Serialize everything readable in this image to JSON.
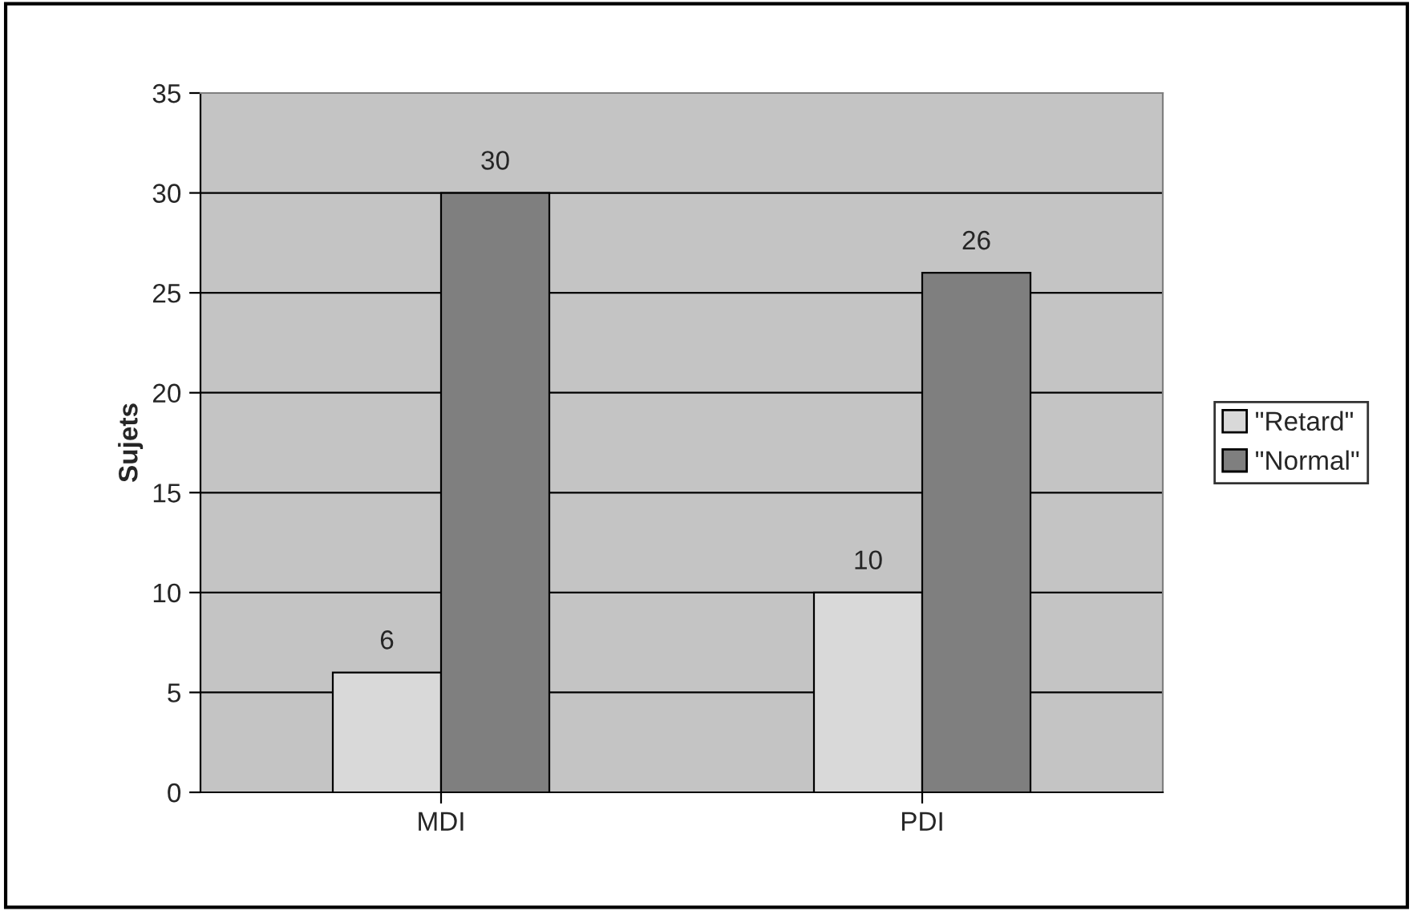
{
  "chart_data": {
    "type": "bar",
    "ylabel": "Sujets",
    "categories": [
      "MDI",
      "PDI"
    ],
    "series": [
      {
        "name": "\"Retard\"",
        "color": "#d9d9d9",
        "values": [
          6,
          10
        ]
      },
      {
        "name": "\"Normal\"",
        "color": "#7f7f7f",
        "values": [
          30,
          26
        ]
      }
    ],
    "ylim": [
      0,
      35
    ],
    "yticks": [
      0,
      5,
      10,
      15,
      20,
      25,
      30,
      35
    ],
    "grid": "y",
    "legend": "right",
    "data_labels": true
  }
}
